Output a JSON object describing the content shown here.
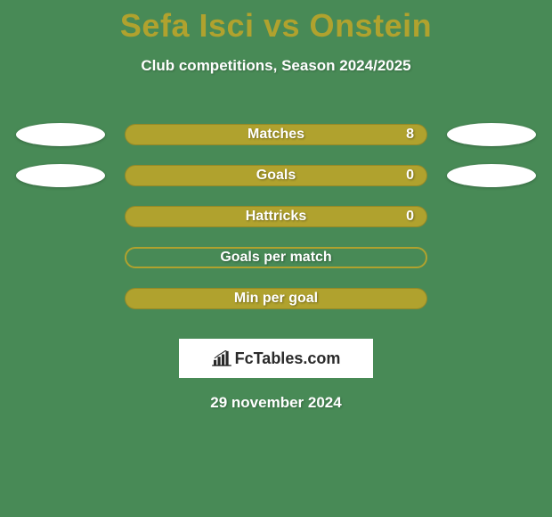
{
  "background_color": "#488a56",
  "title": {
    "text": "Sefa Isci vs Onstein",
    "color": "#b0a22e",
    "fontsize": 36
  },
  "subtitle": {
    "text": "Club competitions, Season 2024/2025",
    "color": "#ffffff",
    "fontsize": 17
  },
  "bar_fill_color": "#b0a22e",
  "bar_outline_color": "#b0a22e",
  "label_text_color": "#ffffff",
  "oval_color": "#ffffff",
  "stats": [
    {
      "label": "Matches",
      "value": "8",
      "filled": true,
      "show_value": true,
      "show_ovals": true
    },
    {
      "label": "Goals",
      "value": "0",
      "filled": true,
      "show_value": true,
      "show_ovals": true
    },
    {
      "label": "Hattricks",
      "value": "0",
      "filled": true,
      "show_value": true,
      "show_ovals": false
    },
    {
      "label": "Goals per match",
      "value": "",
      "filled": false,
      "show_value": false,
      "show_ovals": false
    },
    {
      "label": "Min per goal",
      "value": "",
      "filled": true,
      "show_value": false,
      "show_ovals": false
    }
  ],
  "logo": {
    "text": "FcTables.com",
    "box_bg": "#ffffff",
    "text_color": "#2a2a2a",
    "icon_color": "#2a2a2a"
  },
  "date": {
    "text": "29 november 2024",
    "color": "#ffffff",
    "fontsize": 17
  }
}
